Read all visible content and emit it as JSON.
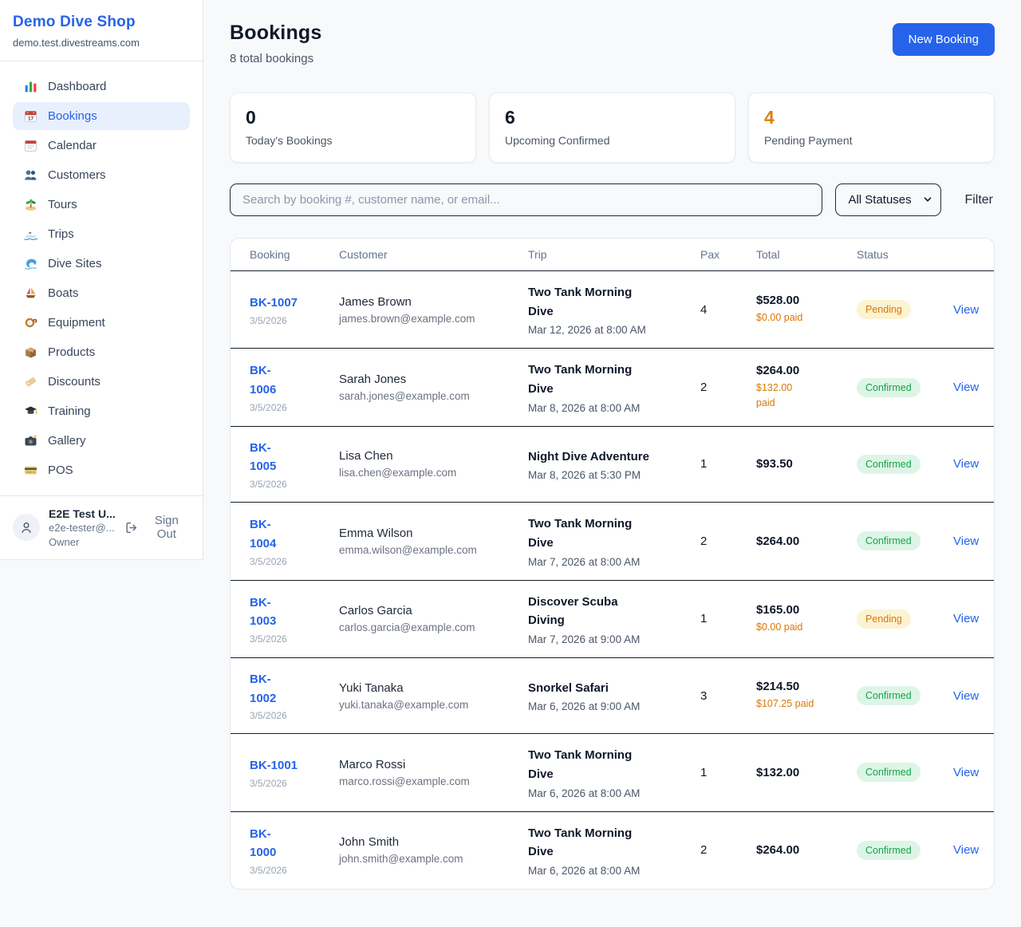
{
  "colors": {
    "brand_blue": "#2563eb",
    "accent_orange": "#d9820b",
    "paid_orange": "#d97706",
    "pending_text": "#d97706",
    "pending_bg": "#fcf3d3",
    "confirmed_text": "#16a34a",
    "confirmed_bg": "#ddf5e6"
  },
  "sidebar": {
    "brand_name": "Demo Dive Shop",
    "brand_domain": "demo.test.divestreams.com",
    "nav": [
      {
        "icon": "bar-chart-icon",
        "label": "Dashboard",
        "active": false
      },
      {
        "icon": "bookings-calendar-icon",
        "label": "Bookings",
        "active": true
      },
      {
        "icon": "calendar-icon",
        "label": "Calendar",
        "active": false
      },
      {
        "icon": "people-icon",
        "label": "Customers",
        "active": false
      },
      {
        "icon": "island-icon",
        "label": "Tours",
        "active": false
      },
      {
        "icon": "speedboat-icon",
        "label": "Trips",
        "active": false
      },
      {
        "icon": "wave-icon",
        "label": "Dive Sites",
        "active": false
      },
      {
        "icon": "sailboat-icon",
        "label": "Boats",
        "active": false
      },
      {
        "icon": "dive-mask-icon",
        "label": "Equipment",
        "active": false
      },
      {
        "icon": "package-icon",
        "label": "Products",
        "active": false
      },
      {
        "icon": "tag-icon",
        "label": "Discounts",
        "active": false
      },
      {
        "icon": "grad-cap-icon",
        "label": "Training",
        "active": false
      },
      {
        "icon": "camera-icon",
        "label": "Gallery",
        "active": false
      },
      {
        "icon": "credit-card-icon",
        "label": "POS",
        "active": false
      }
    ],
    "user": {
      "name": "E2E Test U...",
      "email": "e2e-tester@...",
      "role": "Owner",
      "sign_out_label": "Sign Out"
    }
  },
  "header": {
    "title": "Bookings",
    "subtitle": "8 total bookings",
    "new_booking_label": "New Booking"
  },
  "stats": [
    {
      "value": "0",
      "label": "Today's Bookings",
      "accent": false
    },
    {
      "value": "6",
      "label": "Upcoming Confirmed",
      "accent": false
    },
    {
      "value": "4",
      "label": "Pending Payment",
      "accent": true
    }
  ],
  "filters": {
    "search_placeholder": "Search by booking #, customer name, or email...",
    "status_selected": "All Statuses",
    "filter_label": "Filter"
  },
  "table": {
    "columns": [
      "Booking",
      "Customer",
      "Trip",
      "Pax",
      "Total",
      "Status",
      ""
    ],
    "rows": [
      {
        "booking_no_lines": [
          "BK-1007"
        ],
        "booked_date": "3/5/2026",
        "customer_name": "James Brown",
        "customer_email": "james.brown@example.com",
        "trip_name_lines": [
          "Two Tank Morning",
          "Dive"
        ],
        "trip_datetime": "Mar 12, 2026 at 8:00 AM",
        "pax": "4",
        "total": "$528.00",
        "paid_lines": [
          "$0.00 paid"
        ],
        "status": "Pending",
        "view_label": "View"
      },
      {
        "booking_no_lines": [
          "BK-",
          "1006"
        ],
        "booked_date": "3/5/2026",
        "customer_name": "Sarah Jones",
        "customer_email": "sarah.jones@example.com",
        "trip_name_lines": [
          "Two Tank Morning",
          "Dive"
        ],
        "trip_datetime": "Mar 8, 2026 at 8:00 AM",
        "pax": "2",
        "total": "$264.00",
        "paid_lines": [
          "$132.00",
          "paid"
        ],
        "status": "Confirmed",
        "view_label": "View"
      },
      {
        "booking_no_lines": [
          "BK-",
          "1005"
        ],
        "booked_date": "3/5/2026",
        "customer_name": "Lisa Chen",
        "customer_email": "lisa.chen@example.com",
        "trip_name_lines": [
          "Night Dive Adventure"
        ],
        "trip_datetime": "Mar 8, 2026 at 5:30 PM",
        "pax": "1",
        "total": "$93.50",
        "paid_lines": [],
        "status": "Confirmed",
        "view_label": "View"
      },
      {
        "booking_no_lines": [
          "BK-",
          "1004"
        ],
        "booked_date": "3/5/2026",
        "customer_name": "Emma Wilson",
        "customer_email": "emma.wilson@example.com",
        "trip_name_lines": [
          "Two Tank Morning",
          "Dive"
        ],
        "trip_datetime": "Mar 7, 2026 at 8:00 AM",
        "pax": "2",
        "total": "$264.00",
        "paid_lines": [],
        "status": "Confirmed",
        "view_label": "View"
      },
      {
        "booking_no_lines": [
          "BK-",
          "1003"
        ],
        "booked_date": "3/5/2026",
        "customer_name": "Carlos Garcia",
        "customer_email": "carlos.garcia@example.com",
        "trip_name_lines": [
          "Discover Scuba",
          "Diving"
        ],
        "trip_datetime": "Mar 7, 2026 at 9:00 AM",
        "pax": "1",
        "total": "$165.00",
        "paid_lines": [
          "$0.00 paid"
        ],
        "status": "Pending",
        "view_label": "View"
      },
      {
        "booking_no_lines": [
          "BK-",
          "1002"
        ],
        "booked_date": "3/5/2026",
        "customer_name": "Yuki Tanaka",
        "customer_email": "yuki.tanaka@example.com",
        "trip_name_lines": [
          "Snorkel Safari"
        ],
        "trip_datetime": "Mar 6, 2026 at 9:00 AM",
        "pax": "3",
        "total": "$214.50",
        "paid_lines": [
          "$107.25 paid"
        ],
        "status": "Confirmed",
        "view_label": "View"
      },
      {
        "booking_no_lines": [
          "BK-1001"
        ],
        "booked_date": "3/5/2026",
        "customer_name": "Marco Rossi",
        "customer_email": "marco.rossi@example.com",
        "trip_name_lines": [
          "Two Tank Morning",
          "Dive"
        ],
        "trip_datetime": "Mar 6, 2026 at 8:00 AM",
        "pax": "1",
        "total": "$132.00",
        "paid_lines": [],
        "status": "Confirmed",
        "view_label": "View"
      },
      {
        "booking_no_lines": [
          "BK-",
          "1000"
        ],
        "booked_date": "3/5/2026",
        "customer_name": "John Smith",
        "customer_email": "john.smith@example.com",
        "trip_name_lines": [
          "Two Tank Morning",
          "Dive"
        ],
        "trip_datetime": "Mar 6, 2026 at 8:00 AM",
        "pax": "2",
        "total": "$264.00",
        "paid_lines": [],
        "status": "Confirmed",
        "view_label": "View"
      }
    ]
  }
}
